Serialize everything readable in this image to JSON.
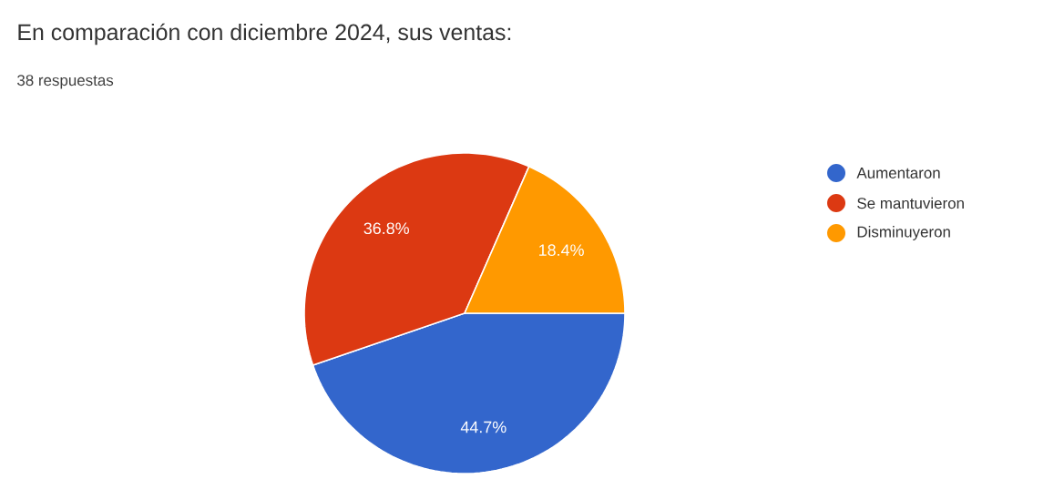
{
  "chart_data": {
    "type": "pie",
    "title": "En comparación con diciembre 2024, sus ventas:",
    "subtitle": "38 respuestas",
    "categories": [
      "Aumentaron",
      "Se mantuvieron",
      "Disminuyeron"
    ],
    "values": [
      44.7,
      36.8,
      18.4
    ],
    "colors": [
      "#3366cc",
      "#dc3912",
      "#ff9900"
    ],
    "value_labels": [
      "44.7%",
      "36.8%",
      "18.4%"
    ],
    "legend": "right"
  }
}
